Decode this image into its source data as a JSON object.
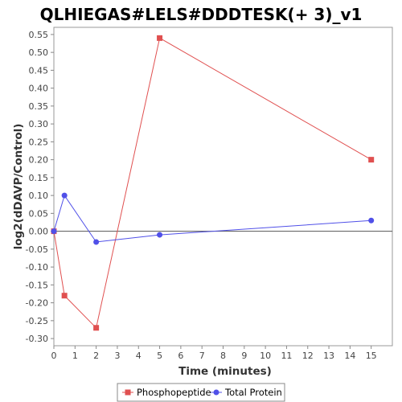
{
  "chart_data": {
    "type": "line",
    "title": "QLHIEGAS#LELS#DDDTESK(+ 3)_v1",
    "xlabel": "Time (minutes)",
    "ylabel": "log2(dDAVP/Control)",
    "xlim": [
      0,
      16
    ],
    "ylim": [
      -0.32,
      0.57
    ],
    "x_ticks": [
      0,
      1,
      2,
      3,
      4,
      5,
      6,
      7,
      8,
      9,
      10,
      11,
      12,
      13,
      14,
      15
    ],
    "y_ticks": [
      -0.3,
      -0.25,
      -0.2,
      -0.15,
      -0.1,
      -0.05,
      0.0,
      0.05,
      0.1,
      0.15,
      0.2,
      0.25,
      0.3,
      0.35,
      0.4,
      0.45,
      0.5,
      0.55
    ],
    "grid": false,
    "zero_line": true,
    "legend_position": "bottom",
    "series": [
      {
        "name": "Phosphopeptide",
        "color": "#e05050",
        "marker": "square",
        "x": [
          0,
          0.5,
          2,
          5,
          15
        ],
        "y": [
          0.0,
          -0.18,
          -0.27,
          0.54,
          0.2
        ]
      },
      {
        "name": "Total Protein",
        "color": "#5050e8",
        "marker": "circle",
        "x": [
          0,
          0.5,
          2,
          5,
          15
        ],
        "y": [
          0.0,
          0.1,
          -0.03,
          -0.01,
          0.03
        ]
      }
    ]
  }
}
